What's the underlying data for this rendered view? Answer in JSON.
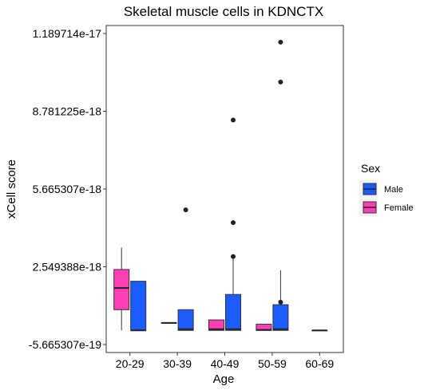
{
  "chart_data": {
    "type": "box",
    "title": "Skeletal muscle cells in KDNCTX",
    "xlabel": "Age",
    "ylabel": "xCell score",
    "categories": [
      "20-29",
      "30-39",
      "40-49",
      "50-59",
      "60-69"
    ],
    "ylim": [
      -5.665307e-19,
      1.189714e-17
    ],
    "y_ticks": [
      {
        "value": -5.665307e-19,
        "label": "-5.665307e-19"
      },
      {
        "value": 2.549388e-18,
        "label": "2.549388e-18"
      },
      {
        "value": 5.665307e-18,
        "label": "5.665307e-18"
      },
      {
        "value": 8.781225e-18,
        "label": "8.781225e-18"
      },
      {
        "value": 1.189714e-17,
        "label": "1.189714e-17"
      }
    ],
    "legend": {
      "title": "Sex",
      "position": "right",
      "entries": [
        {
          "name": "Male",
          "color": "#1a5cff"
        },
        {
          "name": "Female",
          "color": "#ff3fb4"
        }
      ]
    },
    "grid": false,
    "series": [
      {
        "name": "Female",
        "color": "#ff3fb4",
        "boxes": [
          {
            "category": "20-29",
            "whisker_low": 0.0,
            "q1": 8.3e-19,
            "median": 1.7e-18,
            "q3": 2.44e-18,
            "whisker_high": 3.32e-18,
            "outliers": []
          },
          {
            "category": "30-39",
            "whisker_low": 2.9e-19,
            "q1": 2.9e-19,
            "median": 3e-19,
            "q3": 3.1e-19,
            "whisker_high": 3.1e-19,
            "outliers": []
          },
          {
            "category": "40-49",
            "whisker_low": 0.0,
            "q1": 0.0,
            "median": 5e-20,
            "q3": 4.2e-19,
            "whisker_high": 4.2e-19,
            "outliers": []
          },
          {
            "category": "50-59",
            "whisker_low": 0.0,
            "q1": 0.0,
            "median": 2e-20,
            "q3": 2.5e-19,
            "whisker_high": 2.5e-19,
            "outliers": []
          }
        ]
      },
      {
        "name": "Male",
        "color": "#1a5cff",
        "boxes": [
          {
            "category": "20-29",
            "whisker_low": 0.0,
            "q1": 0.0,
            "median": 0.0,
            "q3": 1.97e-18,
            "whisker_high": 1.97e-18,
            "outliers": []
          },
          {
            "category": "30-39",
            "whisker_low": 0.0,
            "q1": 0.0,
            "median": 5e-20,
            "q3": 8.3e-19,
            "whisker_high": 8.3e-19,
            "outliers": [
              4.83e-18
            ]
          },
          {
            "category": "40-49",
            "whisker_low": 0.0,
            "q1": 0.0,
            "median": 5e-20,
            "q3": 1.44e-18,
            "whisker_high": 2.96e-18,
            "outliers": [
              2.96e-18,
              4.32e-18,
              8.43e-18
            ]
          },
          {
            "category": "50-59",
            "whisker_low": 0.0,
            "q1": 0.0,
            "median": 5e-20,
            "q3": 1.03e-18,
            "whisker_high": 2.41e-18,
            "outliers": [
              1.13e-18,
              9.95e-18,
              1.155e-17
            ]
          },
          {
            "category": "60-69",
            "whisker_low": 0.0,
            "q1": 0.0,
            "median": 0.0,
            "q3": 0.0,
            "whisker_high": 0.0,
            "outliers": []
          }
        ]
      }
    ]
  }
}
